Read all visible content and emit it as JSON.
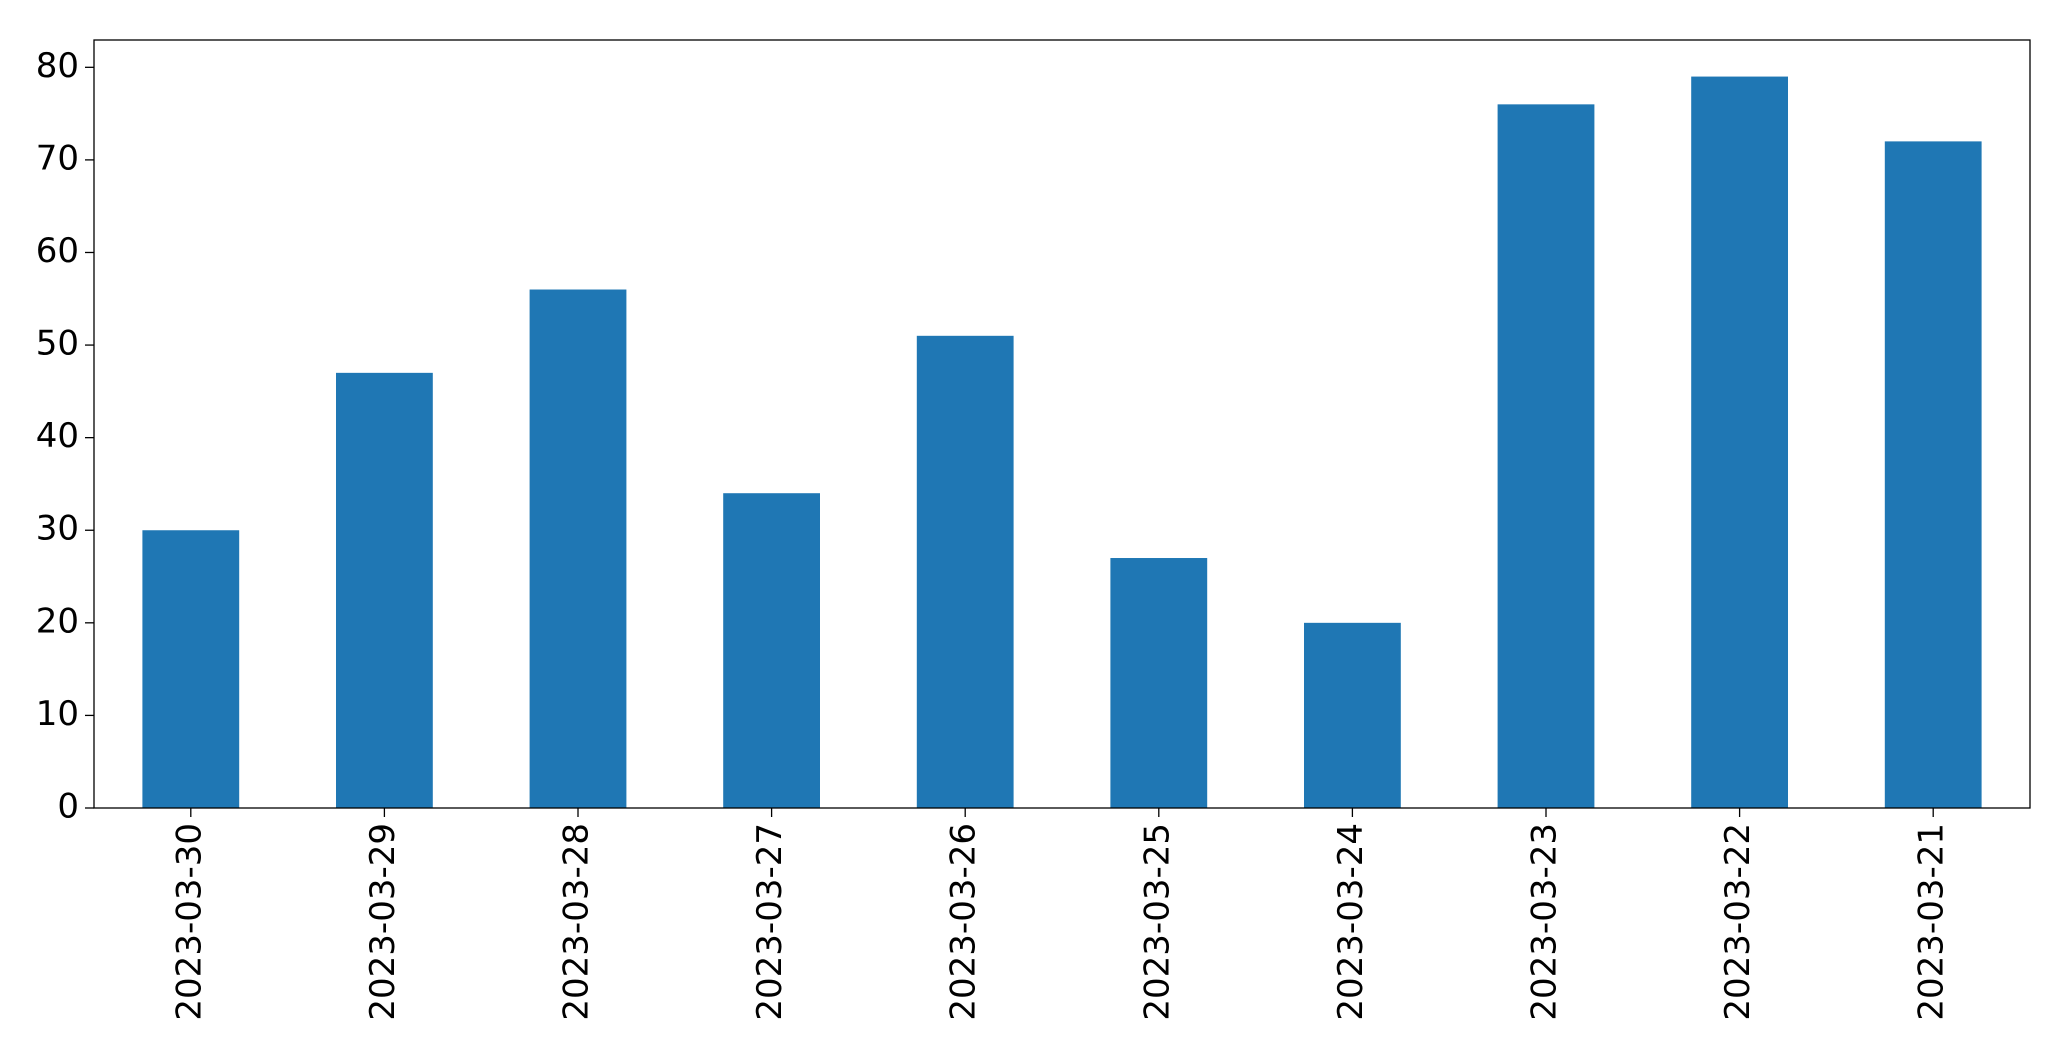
{
  "chart_data": {
    "type": "bar",
    "categories": [
      "2023-03-30",
      "2023-03-29",
      "2023-03-28",
      "2023-03-27",
      "2023-03-26",
      "2023-03-25",
      "2023-03-24",
      "2023-03-23",
      "2023-03-22",
      "2023-03-21"
    ],
    "values": [
      30,
      47,
      56,
      34,
      51,
      27,
      20,
      76,
      79,
      72
    ],
    "color": "#1f77b4",
    "ylim": [
      0,
      82.95
    ],
    "yticks": [
      0,
      10,
      20,
      30,
      40,
      50,
      60,
      70,
      80
    ],
    "grid": false
  }
}
